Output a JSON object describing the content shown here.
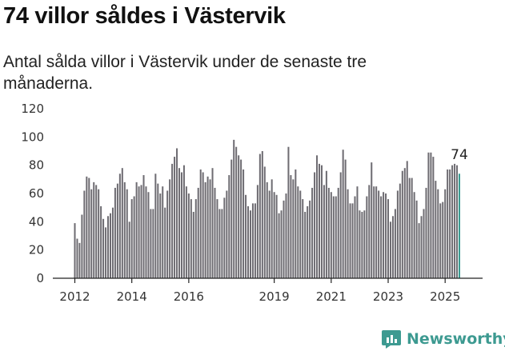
{
  "header": {
    "title": "74 villor såldes i Västervik",
    "subtitle": "Antal sålda villor i Västervik under de senaste tre månaderna."
  },
  "brand": {
    "name": "Newsworthy",
    "logo_icon": "newsworthy-chart-logo-icon",
    "color": "#3d9a91"
  },
  "chart_data": {
    "type": "bar",
    "x_start": "2012-01",
    "x_end": "2025-06",
    "y_range": [
      0,
      120
    ],
    "y_ticks": [
      0,
      20,
      40,
      60,
      80,
      100,
      120
    ],
    "x_ticks": [
      "2012",
      "2014",
      "2016",
      "2019",
      "2021",
      "2023",
      "2025"
    ],
    "grid": false,
    "bar_color": "#6e6c72",
    "highlight_color": "#3a9b91",
    "last_value_label": "74",
    "values": [
      39,
      28,
      25,
      45,
      62,
      72,
      71,
      63,
      68,
      66,
      63,
      51,
      42,
      36,
      44,
      46,
      50,
      64,
      67,
      74,
      78,
      68,
      63,
      40,
      56,
      58,
      68,
      65,
      66,
      73,
      65,
      61,
      49,
      49,
      74,
      67,
      60,
      65,
      50,
      62,
      70,
      81,
      86,
      92,
      78,
      75,
      80,
      65,
      60,
      56,
      47,
      56,
      64,
      77,
      75,
      68,
      72,
      70,
      78,
      64,
      56,
      49,
      49,
      57,
      62,
      73,
      84,
      98,
      93,
      87,
      84,
      77,
      59,
      51,
      48,
      53,
      53,
      66,
      88,
      90,
      79,
      68,
      62,
      70,
      61,
      59,
      46,
      48,
      55,
      60,
      93,
      73,
      70,
      77,
      65,
      62,
      56,
      47,
      51,
      55,
      64,
      75,
      87,
      81,
      80,
      66,
      76,
      64,
      61,
      58,
      58,
      64,
      75,
      91,
      84,
      63,
      53,
      53,
      58,
      65,
      48,
      47,
      48,
      58,
      66,
      82,
      65,
      65,
      62,
      58,
      61,
      60,
      56,
      40,
      44,
      49,
      62,
      67,
      76,
      78,
      83,
      71,
      71,
      61,
      55,
      39,
      44,
      49,
      64,
      89,
      89,
      86,
      69,
      63,
      53,
      54,
      63,
      77,
      77,
      80,
      81,
      80,
      74
    ]
  }
}
